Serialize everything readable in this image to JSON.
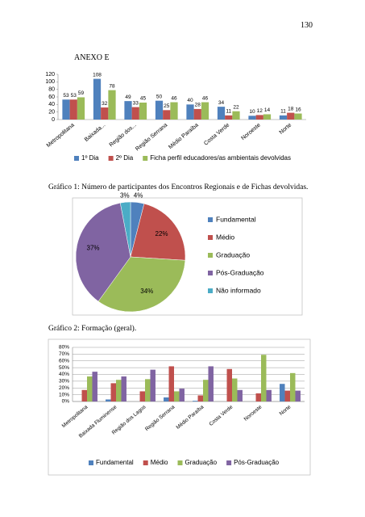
{
  "page_number": "130",
  "heading": "ANEXO E",
  "captions": [
    "Gráfico 1: Número de participantes dos Encontros Regionais e de Fichas devolvidas.",
    "Gráfico 2: Formação (geral)."
  ],
  "chart_data": [
    {
      "type": "bar",
      "categories": [
        "Metropolitana",
        "Baixada...",
        "Região dos...",
        "Região Serrana",
        "Médio Paraíba",
        "Costa Verde",
        "Noroeste",
        "Norte"
      ],
      "series": [
        {
          "name": "1º Dia",
          "color": "#4f81bd",
          "values": [
            53,
            108,
            49,
            50,
            40,
            34,
            10,
            11
          ]
        },
        {
          "name": "2º Dia",
          "color": "#c0504d",
          "values": [
            53,
            32,
            33,
            25,
            28,
            11,
            12,
            18
          ]
        },
        {
          "name": "Ficha perfil educadores/as ambientais devolvidas",
          "color": "#9bbb59",
          "values": [
            59,
            78,
            45,
            46,
            46,
            22,
            14,
            16
          ]
        }
      ],
      "ylim": [
        0,
        120
      ],
      "yticks": [
        0,
        20,
        40,
        60,
        80,
        100,
        120
      ],
      "grid": false,
      "data_labels": true,
      "legend": "bottom"
    },
    {
      "type": "pie",
      "categories": [
        "Fundamental",
        "Médio",
        "Graduação",
        "Pós-Graduação",
        "Não informado"
      ],
      "values": [
        4,
        22,
        34,
        37,
        3
      ],
      "value_labels": [
        "4%",
        "22%",
        "34%",
        "37%",
        "3%"
      ],
      "colors": [
        "#4f81bd",
        "#c0504d",
        "#9bbb59",
        "#8064a2",
        "#4bacc6"
      ],
      "legend": "right"
    },
    {
      "type": "bar",
      "categories": [
        "Metropolitana",
        "Baixada Fluminense",
        "Região dos Lagos",
        "Região Serrana",
        "Médio Paraíba",
        "Costa Verde",
        "Noroeste",
        "Norte"
      ],
      "series": [
        {
          "name": "Fundamental",
          "color": "#4f81bd",
          "values": [
            0,
            3,
            0,
            6,
            1,
            0,
            0,
            26
          ]
        },
        {
          "name": "Médio",
          "color": "#c0504d",
          "values": [
            17,
            27,
            15,
            52,
            9,
            48,
            12,
            16
          ]
        },
        {
          "name": "Graduação",
          "color": "#9bbb59",
          "values": [
            37,
            32,
            33,
            15,
            32,
            34,
            69,
            42
          ]
        },
        {
          "name": "Pós-Graduação",
          "color": "#8064a2",
          "values": [
            44,
            37,
            47,
            19,
            52,
            17,
            17,
            16
          ]
        }
      ],
      "ylim": [
        0,
        80
      ],
      "yticks": [
        {
          "value": 0,
          "label": "0%"
        },
        {
          "value": 10,
          "label": "10%"
        },
        {
          "value": 20,
          "label": "20%"
        },
        {
          "value": 30,
          "label": "30%"
        },
        {
          "value": 40,
          "label": "40%"
        },
        {
          "value": 50,
          "label": "50%"
        },
        {
          "value": 60,
          "label": "60%"
        },
        {
          "value": 70,
          "label": "70%"
        },
        {
          "value": 80,
          "label": "80%"
        }
      ],
      "grid": true,
      "data_labels": false,
      "legend": "bottom"
    }
  ]
}
